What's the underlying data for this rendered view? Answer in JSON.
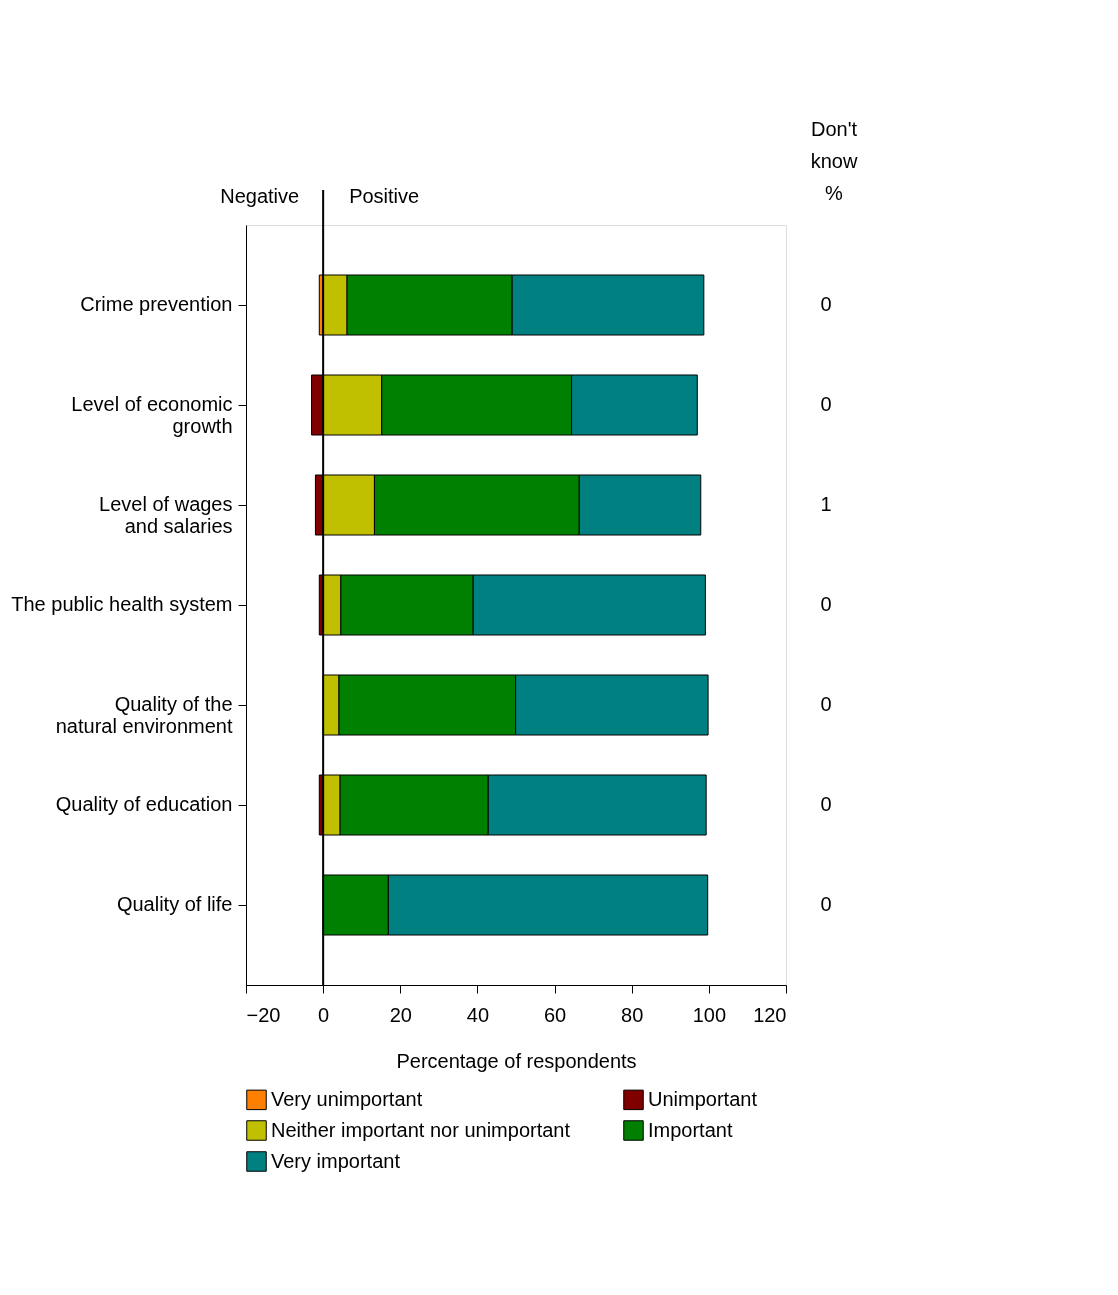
{
  "chart_data": {
    "type": "bar",
    "orientation": "horizontal",
    "stacked": true,
    "categories": [
      "Crime prevention",
      "Level of economic\ngrowth",
      "Level of wages\nand salaries",
      "The public health system",
      "Quality of the\nnatural environment",
      "Quality of education",
      "Quality of life"
    ],
    "series": [
      {
        "name": "Very unimportant",
        "color": "#ff8000",
        "values": [
          -1,
          0,
          0,
          0,
          0,
          0,
          0
        ]
      },
      {
        "name": "Unimportant",
        "color": "#800000",
        "values": [
          0,
          -3,
          -2,
          -1,
          0,
          -1,
          0
        ]
      },
      {
        "name": "Neither important nor unimportant",
        "color": "#c0c000",
        "values": [
          6.2,
          15.2,
          13.3,
          4.6,
          4.1,
          4.4,
          null
        ]
      },
      {
        "name": "Important",
        "color": "#008000",
        "values": [
          42.8,
          49.2,
          53.1,
          34.3,
          45.8,
          38.4,
          16.9
        ]
      },
      {
        "name": "Very important",
        "color": "#008080",
        "values": [
          49.7,
          32.6,
          31.5,
          60.2,
          49.9,
          56.5,
          82.8
        ]
      }
    ],
    "xlim": [
      -20,
      120
    ],
    "xticks": [
      -20,
      0,
      20,
      40,
      60,
      80,
      100,
      120
    ],
    "xlabel": "Percentage of respondents",
    "ref_lines": [
      {
        "axis": "x",
        "value": 0,
        "color": "#000000"
      }
    ],
    "annotations": [
      "Negative",
      "Positive",
      "Don't know %",
      "0",
      "0",
      "1",
      "0",
      "0",
      "0",
      "0"
    ],
    "legend": "bottom",
    "grid": false
  }
}
